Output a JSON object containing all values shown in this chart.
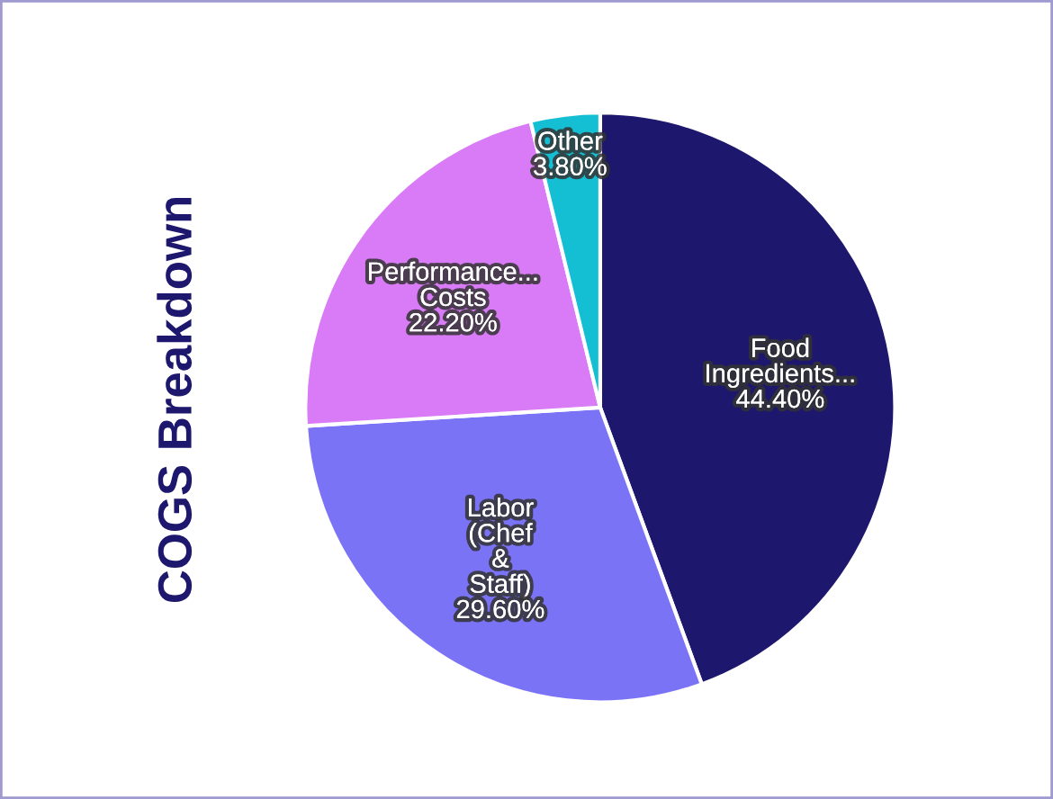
{
  "chart_data": {
    "type": "pie",
    "title": "COGS Breakdown",
    "categories": [
      "Food Ingredients...",
      "Labor (Chef & Staff)",
      "Performance... Costs",
      "Other"
    ],
    "values": [
      44.4,
      29.6,
      22.2,
      3.8
    ],
    "value_labels": [
      "44.40%",
      "29.60%",
      "22.20%",
      "3.80%"
    ],
    "colors": [
      "#1e176e",
      "#7b73f6",
      "#d97bf6",
      "#14bfd3"
    ],
    "legend": false
  }
}
